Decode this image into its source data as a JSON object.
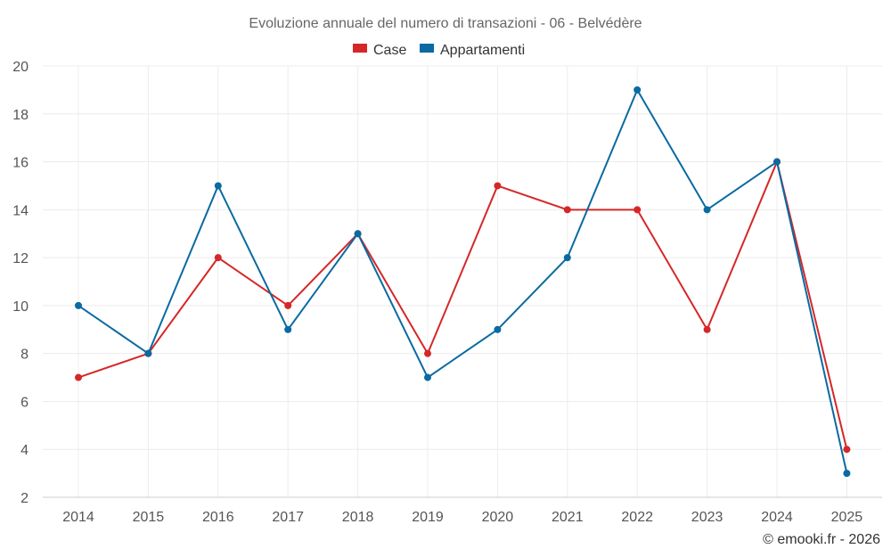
{
  "chart_data": {
    "type": "line",
    "title": "Evoluzione annuale del numero di transazioni - 06 - Belvédère",
    "categories": [
      "2014",
      "2015",
      "2016",
      "2017",
      "2018",
      "2019",
      "2020",
      "2021",
      "2022",
      "2023",
      "2024",
      "2025"
    ],
    "series": [
      {
        "name": "Case",
        "color": "#d62728",
        "values": [
          7,
          8,
          12,
          10,
          13,
          8,
          15,
          14,
          14,
          9,
          16,
          4
        ]
      },
      {
        "name": "Appartamenti",
        "color": "#0a6aa1",
        "values": [
          10,
          8,
          15,
          9,
          13,
          7,
          9,
          12,
          19,
          14,
          16,
          3
        ]
      }
    ],
    "ylim": [
      2,
      20
    ],
    "yticks": [
      2,
      4,
      6,
      8,
      10,
      12,
      14,
      16,
      18,
      20
    ],
    "xlabel": "",
    "ylabel": "",
    "legend": "top-center",
    "grid": true
  },
  "credit": "© emooki.fr - 2026"
}
